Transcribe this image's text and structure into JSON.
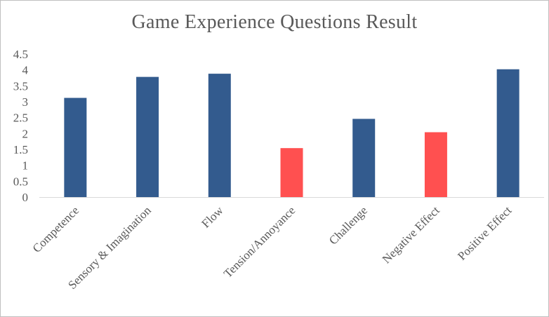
{
  "chart_data": {
    "type": "bar",
    "title": "Game Experience Questions Result",
    "xlabel": "",
    "ylabel": "",
    "categories": [
      "Competence",
      "Sensory & Imagination",
      "Flow",
      "Tension/Annoyance",
      "Challenge",
      "Negative Effect",
      "Positive Effect"
    ],
    "values": [
      3.12,
      3.78,
      3.88,
      1.54,
      2.46,
      2.04,
      4.02
    ],
    "bar_colors": [
      "#335b8e",
      "#335b8e",
      "#335b8e",
      "#ff5050",
      "#335b8e",
      "#ff5050",
      "#335b8e"
    ],
    "ylim": [
      0,
      4.5
    ],
    "yticks": [
      "0",
      "0.5",
      "1",
      "1.5",
      "2",
      "2.5",
      "3",
      "3.5",
      "4",
      "4.5"
    ],
    "grid": false,
    "legend": "none"
  }
}
